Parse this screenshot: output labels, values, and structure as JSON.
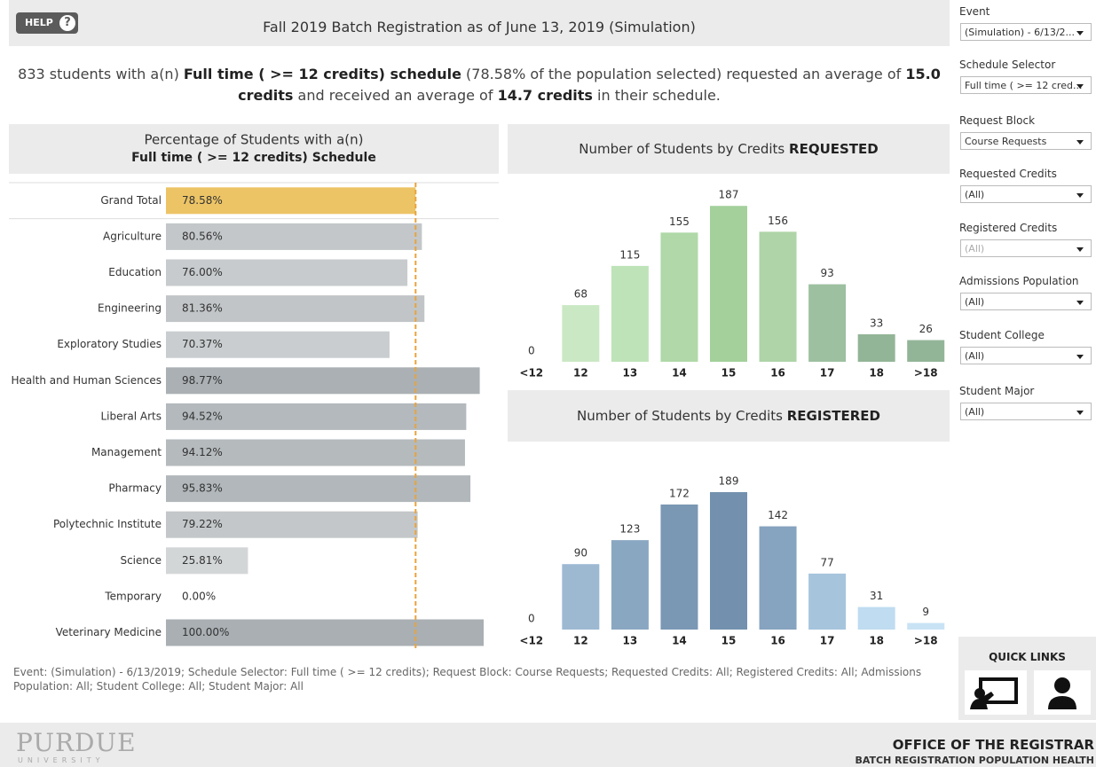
{
  "header": {
    "help": "HELP",
    "help_icon": "?",
    "title": "Fall 2019 Batch Registration as of June 13, 2019  (Simulation)"
  },
  "summary": [
    {
      "text": "833 students with a(n) ",
      "bold": false
    },
    {
      "text": "Full time ( >= 12 credits) schedule",
      "bold": true
    },
    {
      "text": " (78.58% of the population selected) requested an average of ",
      "bold": false
    },
    {
      "text": "15.0 credits",
      "bold": true
    },
    {
      "text": " and received an average of ",
      "bold": false
    },
    {
      "text": "14.7 credits",
      "bold": true
    },
    {
      "text": " in their schedule.",
      "bold": false
    }
  ],
  "chart_data": [
    {
      "type": "hbar",
      "title": "Percentage of Students with a(n)",
      "subtitle": "Full time ( >= 12 credits) Schedule",
      "categories": [
        "Grand Total",
        "Agriculture",
        "Education",
        "Engineering",
        "Exploratory Studies",
        "Health and Human Sciences",
        "Liberal Arts",
        "Management",
        "Pharmacy",
        "Polytechnic Institute",
        "Science",
        "Temporary",
        "Veterinary Medicine"
      ],
      "values": [
        78.58,
        80.56,
        76.0,
        81.36,
        70.37,
        98.77,
        94.52,
        94.12,
        95.83,
        79.22,
        25.81,
        0,
        100
      ],
      "value_labels": [
        "78.58%",
        "80.56%",
        "76.00%",
        "81.36%",
        "70.37%",
        "98.77%",
        "94.52%",
        "94.12%",
        "95.83%",
        "79.22%",
        "25.81%",
        "0.00%",
        "100.00%"
      ],
      "colors": [
        "#ecc466",
        "#c3c7c9",
        "#c7cbcd",
        "#c1c5c7",
        "#c9cdcf",
        "#aab0b4",
        "#b3b9bc",
        "#b5babd",
        "#b1b7ba",
        "#c3c7c9",
        "#d3d6d7",
        "#d8dbdc",
        "#a9afb3"
      ],
      "xlim": [
        0,
        100
      ],
      "reference_line": 78.58,
      "reference_color": "#e8a33c"
    },
    {
      "type": "bar",
      "title": "Number of Students by Credits ",
      "title_bold": "REQUESTED",
      "categories": [
        "<12",
        "12",
        "13",
        "14",
        "15",
        "16",
        "17",
        "18",
        ">18"
      ],
      "values": [
        0,
        68,
        115,
        155,
        187,
        156,
        93,
        33,
        26
      ],
      "colors": [
        "#cbe8c4",
        "#cbe8c4",
        "#bfe3b8",
        "#b0d8a8",
        "#a3d09b",
        "#aed4a8",
        "#9dc0a0",
        "#93b597",
        "#93b597"
      ],
      "ylim": [
        0,
        200
      ]
    },
    {
      "type": "bar",
      "title": "Number of Students by Credits ",
      "title_bold": "REGISTERED",
      "categories": [
        "<12",
        "12",
        "13",
        "14",
        "15",
        "16",
        "17",
        "18",
        ">18"
      ],
      "values": [
        0,
        90,
        123,
        172,
        189,
        142,
        77,
        31,
        9
      ],
      "colors": [
        "#9db9d2",
        "#9db9d2",
        "#8aa7c2",
        "#7a97b4",
        "#7391ae",
        "#86a3bf",
        "#a6c4dc",
        "#bfdcf0",
        "#c9e3f5"
      ],
      "ylim": [
        0,
        200
      ]
    }
  ],
  "filters": [
    {
      "label": "Event",
      "value": "(Simulation) - 6/13/2...",
      "enabled": true
    },
    {
      "label": "Schedule Selector",
      "value": "Full time ( >= 12 cred...",
      "enabled": true
    },
    {
      "label": "Request Block",
      "value": "Course Requests",
      "enabled": true
    },
    {
      "label": "Requested Credits",
      "value": "(All)",
      "enabled": true
    },
    {
      "label": "Registered Credits",
      "value": "(All)",
      "enabled": false
    },
    {
      "label": "Admissions Population",
      "value": "(All)",
      "enabled": true
    },
    {
      "label": "Student College",
      "value": "(All)",
      "enabled": true
    },
    {
      "label": "Student Major",
      "value": "(All)",
      "enabled": true
    }
  ],
  "quick_links": {
    "title": "QUICK LINKS"
  },
  "filter_note": "Event: (Simulation) - 6/13/2019; Schedule Selector: Full time ( >= 12 credits); Request Block: Course Requests; Requested Credits:  All; Registered Credits:  All; Admissions Population: All; Student College: All; Student Major: All",
  "footer": {
    "logo": "PURDUE",
    "logo_sub": "UNIVERSITY",
    "office": "OFFICE OF THE REGISTRAR",
    "subtitle": "BATCH REGISTRATION POPULATION HEALTH"
  }
}
